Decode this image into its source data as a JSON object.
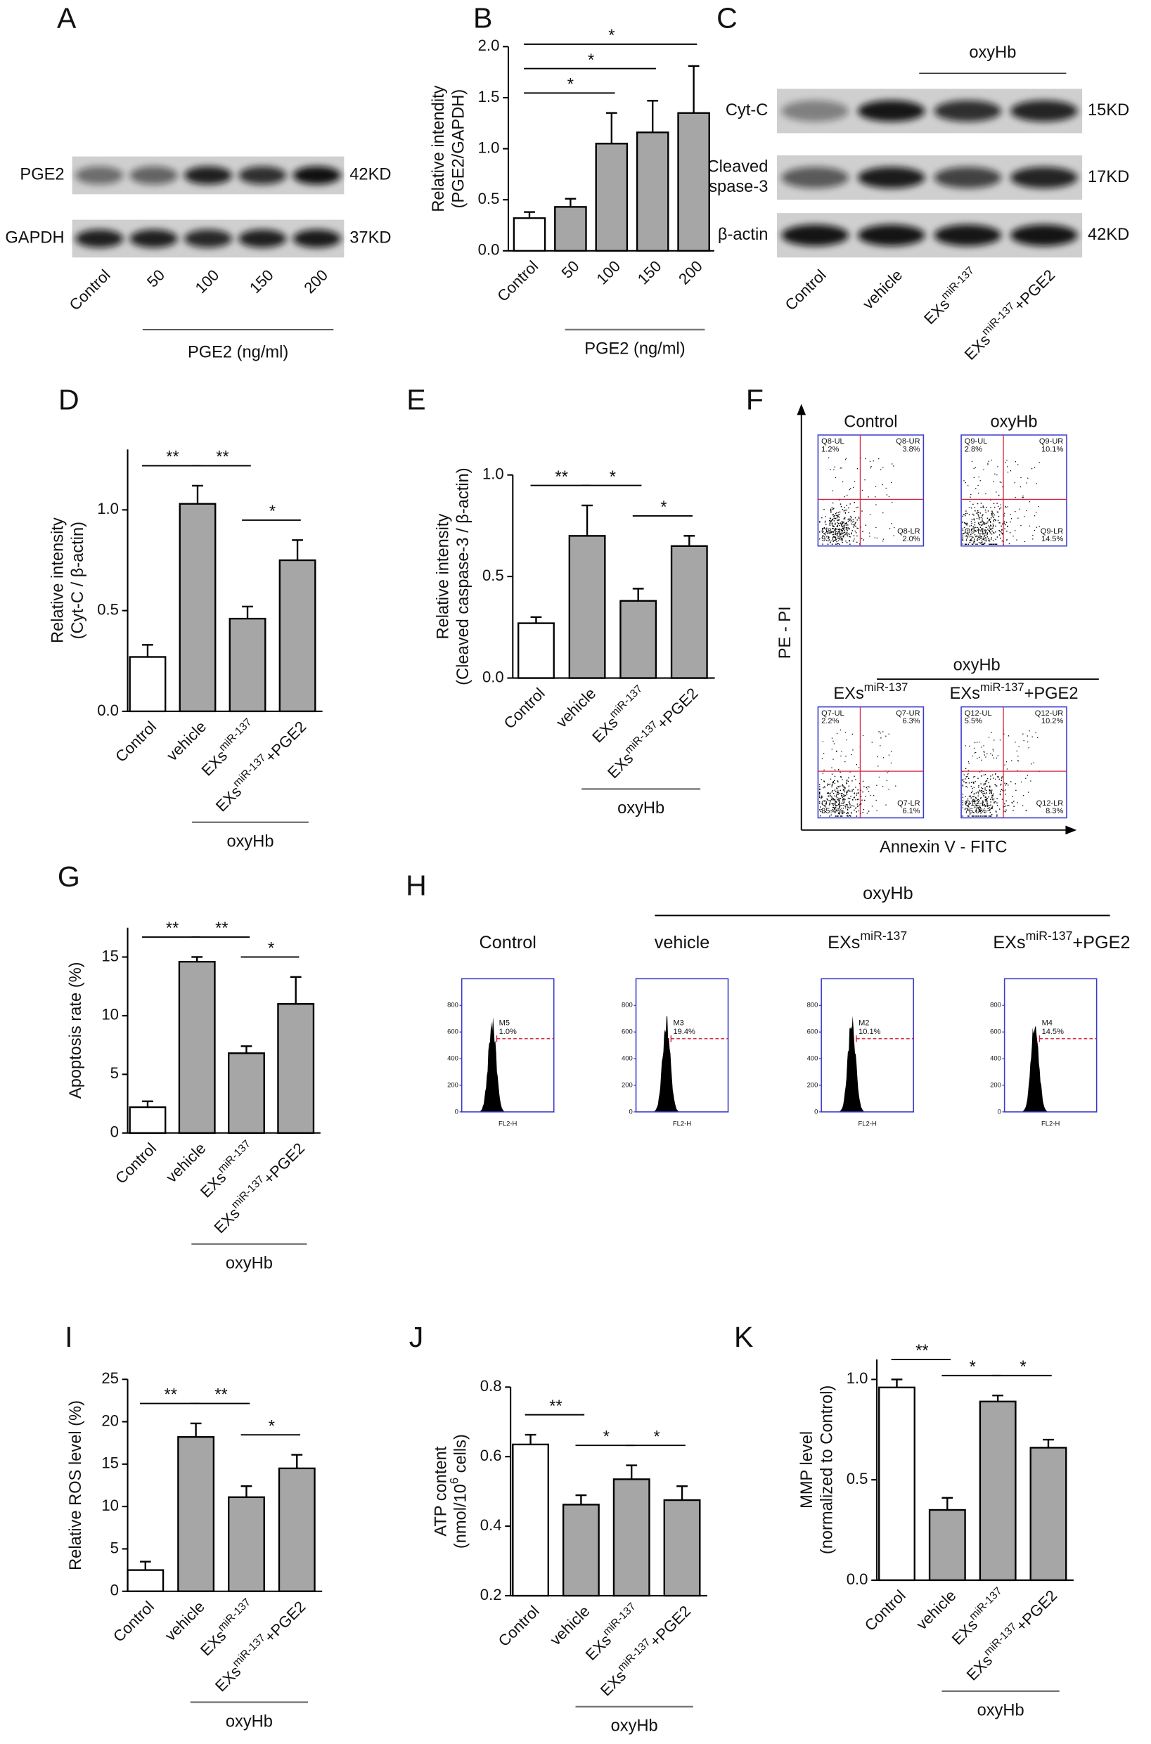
{
  "panel_letters": [
    "A",
    "B",
    "C",
    "D",
    "E",
    "F",
    "G",
    "H",
    "I",
    "J",
    "K"
  ],
  "blots": [
    {
      "lanes": [
        [
          "Control"
        ],
        [
          "50"
        ],
        [
          "100"
        ],
        [
          "150"
        ],
        [
          "200"
        ]
      ],
      "rows": [
        {
          "label": [
            "PGE2"
          ],
          "size": "42KD"
        },
        {
          "label": [
            "GAPDH"
          ],
          "size": "37KD"
        }
      ],
      "group_label": "PGE2 (ng/ml)"
    },
    {
      "lanes": [
        [
          "Control"
        ],
        [
          "vehicle"
        ],
        [
          "EXs",
          "miR-137"
        ],
        [
          "EXs",
          "miR-137",
          "+PGE2"
        ]
      ],
      "rows": [
        {
          "label": [
            "Cyt-C"
          ],
          "size": "15KD"
        },
        {
          "label": [
            "Cleaved",
            "caspase-3"
          ],
          "size": "17KD"
        },
        {
          "label": [
            "β-actin"
          ],
          "size": "42KD"
        }
      ],
      "group_label": "oxyHb"
    }
  ],
  "chart_data": [
    {
      "type": "bar",
      "ylabel": [
        [
          "Relative intendity"
        ],
        [
          "(PGE2/GAPDH)"
        ]
      ],
      "categories": [
        [
          "Control"
        ],
        [
          "50"
        ],
        [
          "100"
        ],
        [
          "150"
        ],
        [
          "200"
        ]
      ],
      "values": [
        0.32,
        0.43,
        1.05,
        1.16,
        1.35
      ],
      "errors": [
        0.06,
        0.08,
        0.3,
        0.31,
        0.46
      ],
      "colors": [
        "#ffffff",
        "#a6a6a6",
        "#a6a6a6",
        "#a6a6a6",
        "#a6a6a6"
      ],
      "ylim": [
        0,
        2
      ],
      "yticks": [
        {
          "value": 0,
          "label": "0.0"
        },
        0.5,
        {
          "value": 1,
          "label": "1.0"
        },
        1.5,
        {
          "value": 2,
          "label": "2.0"
        }
      ],
      "significance": [
        "*",
        "*",
        "*"
      ],
      "group_label": "PGE2 (ng/ml)"
    },
    {
      "type": "bar",
      "ylabel": [
        [
          "Relative intensity"
        ],
        [
          "(Cyt-C / β-actin)"
        ]
      ],
      "categories": [
        [
          "Control"
        ],
        [
          "vehicle"
        ],
        [
          "EXs",
          "miR-137"
        ],
        [
          "EXs",
          "miR-137",
          "+PGE2"
        ]
      ],
      "values": [
        0.27,
        1.03,
        0.46,
        0.75
      ],
      "errors": [
        0.06,
        0.09,
        0.06,
        0.1
      ],
      "colors": [
        "#ffffff",
        "#a6a6a6",
        "#a6a6a6",
        "#a6a6a6"
      ],
      "ylim": [
        0,
        1.3
      ],
      "yticks": [
        {
          "value": 0,
          "label": "0.0"
        },
        0.5,
        {
          "value": 1,
          "label": "1.0"
        }
      ],
      "significance": [
        "**",
        "**",
        "*"
      ],
      "group_label": "oxyHb"
    },
    {
      "type": "bar",
      "ylabel": [
        [
          "Relative intensity"
        ],
        [
          "(Cleaved caspase-3 / β-actin)"
        ]
      ],
      "categories": [
        [
          "Control"
        ],
        [
          "vehicle"
        ],
        [
          "EXs",
          "miR-137"
        ],
        [
          "EXs",
          "miR-137",
          "+PGE2"
        ]
      ],
      "values": [
        0.27,
        0.7,
        0.38,
        0.65
      ],
      "errors": [
        0.03,
        0.15,
        0.06,
        0.05
      ],
      "colors": [
        "#ffffff",
        "#a6a6a6",
        "#a6a6a6",
        "#a6a6a6"
      ],
      "ylim": [
        0,
        1
      ],
      "yticks": [
        {
          "value": 0,
          "label": "0.0"
        },
        0.5,
        {
          "value": 1,
          "label": "1.0"
        }
      ],
      "significance": [
        "**",
        "*",
        "*"
      ],
      "group_label": "oxyHb"
    },
    {
      "type": "bar",
      "ylabel": [
        [
          "Apoptosis rate (%)"
        ]
      ],
      "categories": [
        [
          "Control"
        ],
        [
          "vehicle"
        ],
        [
          "EXs",
          "miR-137"
        ],
        [
          "EXs",
          "miR-137",
          "+PGE2"
        ]
      ],
      "values": [
        2.2,
        14.6,
        6.8,
        11.0
      ],
      "errors": [
        0.5,
        0.4,
        0.6,
        2.3
      ],
      "colors": [
        "#ffffff",
        "#a6a6a6",
        "#a6a6a6",
        "#a6a6a6"
      ],
      "ylim": [
        0,
        17.5
      ],
      "yticks": [
        0,
        5,
        10,
        15
      ],
      "significance": [
        "**",
        "**",
        "*"
      ],
      "group_label": "oxyHb"
    },
    {
      "type": "bar",
      "ylabel": [
        [
          "Relative ROS level (%)"
        ]
      ],
      "categories": [
        [
          "Control"
        ],
        [
          "vehicle"
        ],
        [
          "EXs",
          "miR-137"
        ],
        [
          "EXs",
          "miR-137",
          "+PGE2"
        ]
      ],
      "values": [
        2.5,
        18.2,
        11.1,
        14.5
      ],
      "errors": [
        1.0,
        1.6,
        1.3,
        1.6
      ],
      "colors": [
        "#ffffff",
        "#a6a6a6",
        "#a6a6a6",
        "#a6a6a6"
      ],
      "ylim": [
        0,
        25
      ],
      "yticks": [
        0,
        5,
        10,
        15,
        20,
        25
      ],
      "significance": [
        "**",
        "**",
        "*"
      ],
      "group_label": "oxyHb"
    },
    {
      "type": "bar",
      "ylabel": [
        [
          "ATP content"
        ],
        [
          "(nmol/10",
          "6",
          " cells)"
        ]
      ],
      "categories": [
        [
          "Control"
        ],
        [
          "vehicle"
        ],
        [
          "EXs",
          "miR-137"
        ],
        [
          "EXs",
          "miR-137",
          "+PGE2"
        ]
      ],
      "values": [
        0.635,
        0.462,
        0.535,
        0.475
      ],
      "errors": [
        0.028,
        0.027,
        0.04,
        0.04
      ],
      "colors": [
        "#ffffff",
        "#a6a6a6",
        "#a6a6a6",
        "#a6a6a6"
      ],
      "ylim": [
        0.2,
        0.8
      ],
      "yticks": [
        0.2,
        0.4,
        0.6,
        0.8
      ],
      "significance": [
        "**",
        "*",
        "*"
      ],
      "group_label": "oxyHb"
    },
    {
      "type": "bar",
      "ylabel": [
        [
          "MMP level"
        ],
        [
          "(normalized to Control)"
        ]
      ],
      "categories": [
        [
          "Control"
        ],
        [
          "vehicle"
        ],
        [
          "EXs",
          "miR-137"
        ],
        [
          "EXs",
          "miR-137",
          "+PGE2"
        ]
      ],
      "values": [
        0.96,
        0.35,
        0.89,
        0.66
      ],
      "errors": [
        0.04,
        0.06,
        0.03,
        0.04
      ],
      "colors": [
        "#ffffff",
        "#a6a6a6",
        "#a6a6a6",
        "#a6a6a6"
      ],
      "ylim": [
        0,
        1.1
      ],
      "yticks": [
        {
          "value": 0,
          "label": "0.0"
        },
        0.5,
        {
          "value": 1,
          "label": "1.0"
        }
      ],
      "significance": [
        "**",
        "*",
        "*"
      ],
      "group_label": "oxyHb"
    }
  ],
  "flow_apoptosis": {
    "group_label": "oxyHb",
    "ylabel": "PE - PI",
    "xlabel": "Annexin V - FITC",
    "plots": [
      {
        "title": [
          "Control"
        ],
        "quadrants": [
          {
            "name": "Q8-UL",
            "percent": "1.2%"
          },
          {
            "name": "Q8-UR",
            "percent": "3.8%"
          },
          {
            "name": "Q8-LL",
            "percent": "93.0%"
          },
          {
            "name": "Q8-LR",
            "percent": "2.0%"
          }
        ]
      },
      {
        "title": [
          "oxyHb"
        ],
        "quadrants": [
          {
            "name": "Q9-UL",
            "percent": "2.8%"
          },
          {
            "name": "Q9-UR",
            "percent": "10.1%"
          },
          {
            "name": "Q9-LL",
            "percent": "72.7%"
          },
          {
            "name": "Q9-LR",
            "percent": "14.5%"
          }
        ]
      },
      {
        "title": [
          "EXs",
          "miR-137"
        ],
        "quadrants": [
          {
            "name": "Q7-UL",
            "percent": "2.2%"
          },
          {
            "name": "Q7-UR",
            "percent": "6.3%"
          },
          {
            "name": "Q7-LL",
            "percent": "85.4%"
          },
          {
            "name": "Q7-LR",
            "percent": "6.1%"
          }
        ]
      },
      {
        "title": [
          "EXs",
          "miR-137",
          "+PGE2"
        ],
        "quadrants": [
          {
            "name": "Q12-UL",
            "percent": "5.5%"
          },
          {
            "name": "Q12-UR",
            "percent": "10.2%"
          },
          {
            "name": "Q12-LL",
            "percent": "76.0%"
          },
          {
            "name": "Q12-LR",
            "percent": "8.3%"
          }
        ]
      }
    ]
  },
  "flow_ros": {
    "group_label": "oxyHb",
    "xlabel": "FL2-H",
    "ylim": [
      0,
      1000
    ],
    "yticks": [
      0,
      200,
      400,
      600,
      800
    ],
    "plots": [
      {
        "title": [
          "Control"
        ],
        "gate": "M5",
        "percent": "1.0%"
      },
      {
        "title": [
          "vehicle"
        ],
        "gate": "M3",
        "percent": "19.4%"
      },
      {
        "title": [
          "EXs",
          "miR-137"
        ],
        "gate": "M2",
        "percent": "10.1%"
      },
      {
        "title": [
          "EXs",
          "miR-137",
          "+PGE2"
        ],
        "gate": "M4",
        "percent": "14.5%"
      }
    ]
  }
}
